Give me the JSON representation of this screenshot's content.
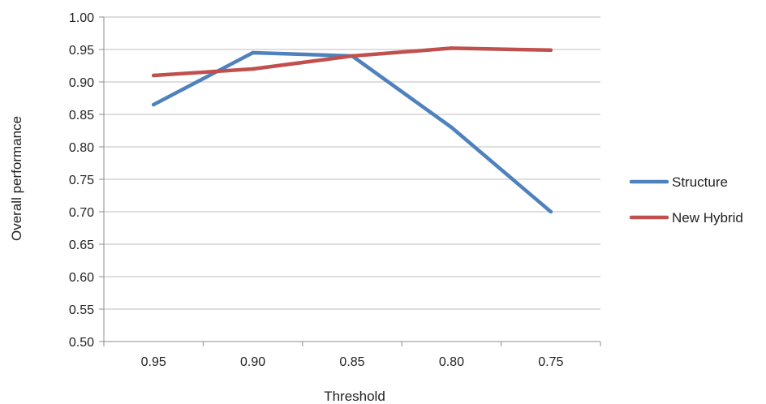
{
  "chart_data": {
    "type": "line",
    "x": [
      "0.95",
      "0.90",
      "0.85",
      "0.80",
      "0.75"
    ],
    "xlabel": "Threshold",
    "ylabel": "Overall performance",
    "ylim": [
      0.5,
      1.0
    ],
    "yticks": [
      "0.50",
      "0.55",
      "0.60",
      "0.65",
      "0.70",
      "0.75",
      "0.80",
      "0.85",
      "0.90",
      "0.95",
      "1.00"
    ],
    "grid": true,
    "legend_position": "right",
    "series": [
      {
        "name": "Structure",
        "color": "#4f81bd",
        "values": [
          0.865,
          0.945,
          0.94,
          0.83,
          0.7
        ]
      },
      {
        "name": "New Hybrid",
        "color": "#c0504d",
        "values": [
          0.91,
          0.92,
          0.94,
          0.952,
          0.949
        ]
      }
    ]
  }
}
